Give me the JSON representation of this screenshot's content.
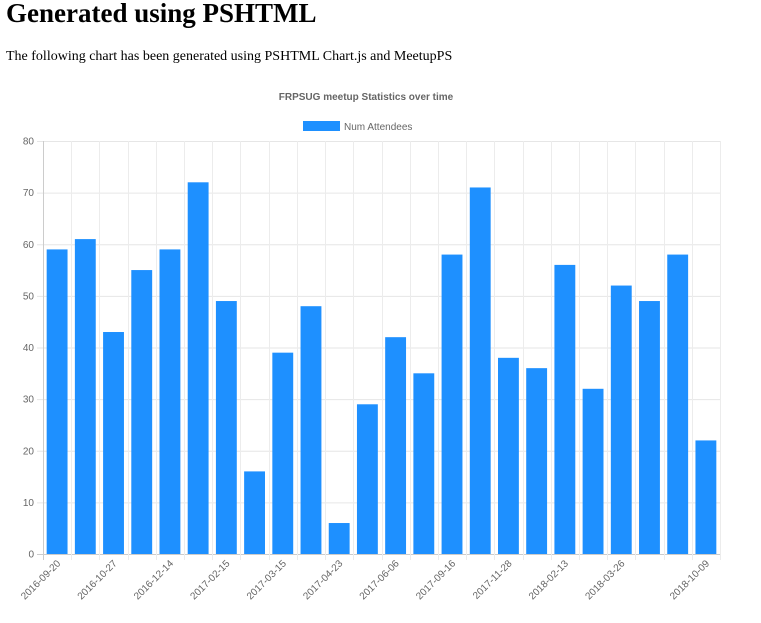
{
  "page": {
    "title": "Generated using PSHTML",
    "intro": "The following chart has been generated using PSHTML Chart.js and MeetupPS"
  },
  "chart_data": {
    "type": "bar",
    "title": "FRPSUG meetup Statistics over time",
    "legend": {
      "position": "top"
    },
    "xlabel": "",
    "ylabel": "",
    "ylim": [
      0,
      80
    ],
    "yticks": [
      0,
      10,
      20,
      30,
      40,
      50,
      60,
      70,
      80
    ],
    "grid": true,
    "x_tick_labels": [
      {
        "index": 0,
        "label": "2016-09-20"
      },
      {
        "index": 2,
        "label": "2016-10-27"
      },
      {
        "index": 4,
        "label": "2016-12-14"
      },
      {
        "index": 6,
        "label": "2017-02-15"
      },
      {
        "index": 8,
        "label": "2017-03-15"
      },
      {
        "index": 10,
        "label": "2017-04-23"
      },
      {
        "index": 12,
        "label": "2017-06-06"
      },
      {
        "index": 14,
        "label": "2017-09-16"
      },
      {
        "index": 16,
        "label": "2017-11-28"
      },
      {
        "index": 18,
        "label": "2018-02-13"
      },
      {
        "index": 20,
        "label": "2018-03-26"
      },
      {
        "index": 23,
        "label": "2018-10-09"
      }
    ],
    "series": [
      {
        "name": "Num Attendees",
        "color": "#1e90ff",
        "values": [
          59,
          61,
          43,
          55,
          59,
          72,
          49,
          16,
          39,
          48,
          6,
          29,
          42,
          35,
          58,
          71,
          38,
          36,
          56,
          32,
          52,
          49,
          58,
          22
        ]
      }
    ]
  }
}
